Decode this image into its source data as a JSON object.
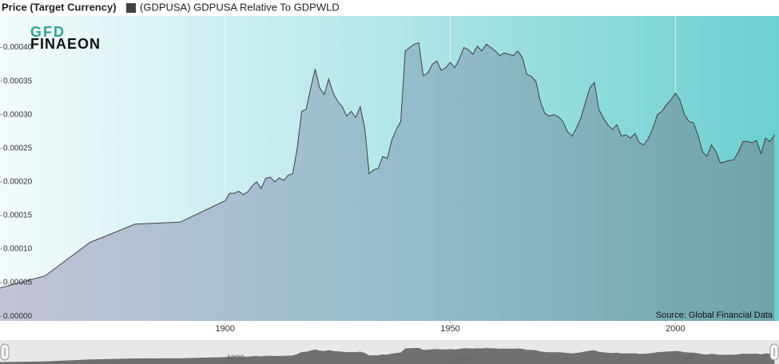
{
  "chart_data": {
    "type": "area",
    "title": "Price (Target Currency)",
    "logo": {
      "top": "GFD",
      "bottom": "FINAEON"
    },
    "source": "Source: Global Financial Data",
    "x": [
      1850,
      1860,
      1870,
      1880,
      1890,
      1900,
      1901,
      1902,
      1903,
      1904,
      1905,
      1906,
      1907,
      1908,
      1909,
      1910,
      1911,
      1912,
      1913,
      1914,
      1915,
      1916,
      1917,
      1918,
      1919,
      1920,
      1921,
      1922,
      1923,
      1924,
      1925,
      1926,
      1927,
      1928,
      1929,
      1930,
      1931,
      1932,
      1933,
      1934,
      1935,
      1936,
      1937,
      1938,
      1939,
      1940,
      1941,
      1942,
      1943,
      1944,
      1945,
      1946,
      1947,
      1948,
      1949,
      1950,
      1951,
      1952,
      1953,
      1954,
      1955,
      1956,
      1957,
      1958,
      1959,
      1960,
      1961,
      1962,
      1963,
      1964,
      1965,
      1966,
      1967,
      1968,
      1969,
      1970,
      1971,
      1972,
      1973,
      1974,
      1975,
      1976,
      1977,
      1978,
      1979,
      1980,
      1981,
      1982,
      1983,
      1984,
      1985,
      1986,
      1987,
      1988,
      1989,
      1990,
      1991,
      1992,
      1993,
      1994,
      1995,
      1996,
      1997,
      1998,
      1999,
      2000,
      2001,
      2002,
      2003,
      2004,
      2005,
      2006,
      2007,
      2008,
      2009,
      2010,
      2011,
      2012,
      2013,
      2014,
      2015,
      2016,
      2017,
      2018,
      2019,
      2020,
      2021,
      2022
    ],
    "series": [
      {
        "name": "(GDPUSA) GDPUSA Relative To GDPWLD",
        "color": "#404040",
        "values": [
          4.2e-05,
          6e-05,
          0.00011,
          0.000137,
          0.00014,
          0.000172,
          0.000183,
          0.000183,
          0.000186,
          0.000181,
          0.000185,
          0.000194,
          0.0002,
          0.00019,
          0.000205,
          0.000207,
          0.0002,
          0.000206,
          0.000202,
          0.00021,
          0.000212,
          0.00025,
          0.000305,
          0.000308,
          0.00034,
          0.000368,
          0.00034,
          0.00033,
          0.000353,
          0.000332,
          0.00032,
          0.000312,
          0.000298,
          0.000305,
          0.000296,
          0.000312,
          0.00028,
          0.000212,
          0.000218,
          0.00022,
          0.000238,
          0.000235,
          0.000262,
          0.000278,
          0.00029,
          0.000395,
          0.0004,
          0.000405,
          0.000407,
          0.000358,
          0.000362,
          0.000375,
          0.00038,
          0.000366,
          0.00037,
          0.000378,
          0.00037,
          0.000383,
          0.0004,
          0.000397,
          0.00039,
          0.000402,
          0.000395,
          0.000405,
          0.0004,
          0.000395,
          0.000388,
          0.000392,
          0.00039,
          0.000388,
          0.000395,
          0.000385,
          0.00036,
          0.000357,
          0.00035,
          0.00032,
          0.000302,
          0.000298,
          0.0003,
          0.000297,
          0.00029,
          0.000275,
          0.000268,
          0.00028,
          0.000295,
          0.000318,
          0.00034,
          0.000348,
          0.000308,
          0.000295,
          0.000285,
          0.000278,
          0.000285,
          0.000268,
          0.00027,
          0.000265,
          0.000272,
          0.000258,
          0.000255,
          0.000265,
          0.00028,
          0.0003,
          0.000305,
          0.000315,
          0.000322,
          0.000332,
          0.000322,
          0.0003,
          0.00029,
          0.000288,
          0.00027,
          0.000245,
          0.000238,
          0.000255,
          0.000245,
          0.000228,
          0.00023,
          0.000232,
          0.000233,
          0.000245,
          0.00026,
          0.00026,
          0.000258,
          0.000262,
          0.000242,
          0.000265,
          0.00026,
          0.00027
        ]
      }
    ],
    "xlim": [
      1850,
      2023
    ],
    "xticks": [
      1900,
      1950,
      2000
    ],
    "ylim": [
      -7e-06,
      0.000447
    ],
    "yticks": [
      {
        "value": 0,
        "label": "0.00000"
      },
      {
        "value": 5e-05,
        "label": "0.00005"
      },
      {
        "value": 0.0001,
        "label": "0.00010"
      },
      {
        "value": 0.00015,
        "label": "0.00015"
      },
      {
        "value": 0.0002,
        "label": "0.00020"
      },
      {
        "value": 0.00025,
        "label": "0.00025"
      },
      {
        "value": 0.0003,
        "label": "0.00030"
      },
      {
        "value": 0.00035,
        "label": "0.00035"
      },
      {
        "value": 0.0004,
        "label": "0.00040"
      }
    ],
    "xgrid": true
  }
}
